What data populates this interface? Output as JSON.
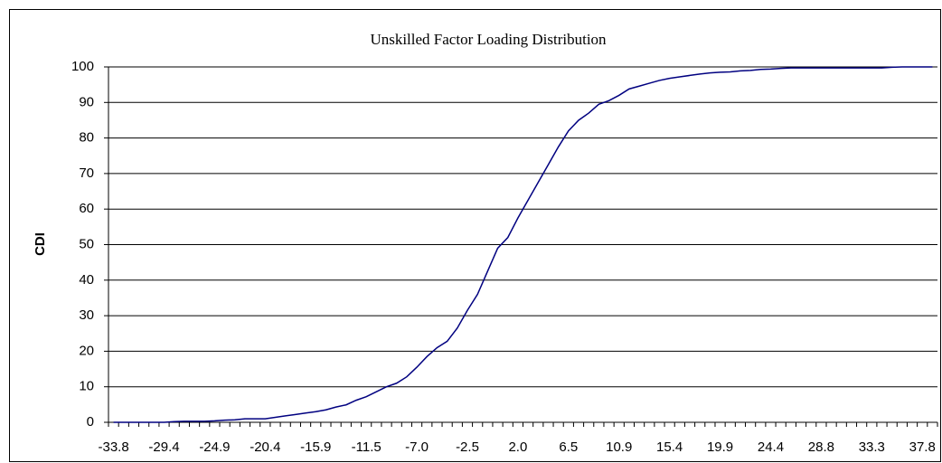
{
  "chart_data": {
    "type": "line",
    "title": "Unskilled Factor Loading Distribution",
    "y_label": "CDI",
    "categories": [
      "-33.8",
      null,
      null,
      null,
      null,
      "-29.4",
      null,
      null,
      null,
      null,
      "-24.9",
      null,
      null,
      null,
      null,
      "-20.4",
      null,
      null,
      null,
      null,
      "-15.9",
      null,
      null,
      null,
      null,
      "-11.5",
      null,
      null,
      null,
      null,
      "-7.0",
      null,
      null,
      null,
      null,
      "-2.5",
      null,
      null,
      null,
      null,
      "2.0",
      null,
      null,
      null,
      null,
      "6.5",
      null,
      null,
      null,
      null,
      "10.9",
      null,
      null,
      null,
      null,
      "15.4",
      null,
      null,
      null,
      null,
      "19.9",
      null,
      null,
      null,
      null,
      "24.4",
      null,
      null,
      null,
      null,
      "28.8",
      null,
      null,
      null,
      null,
      "33.3",
      null,
      null,
      null,
      null,
      "37.8",
      null
    ],
    "values": [
      0,
      0,
      0,
      0,
      0,
      0,
      0.2,
      0.3,
      0.3,
      0.3,
      0.4,
      0.6,
      0.7,
      1.0,
      1.0,
      1.0,
      1.4,
      1.8,
      2.2,
      2.6,
      3.0,
      3.5,
      4.3,
      4.9,
      6.2,
      7.2,
      8.6,
      10.0,
      11.0,
      12.8,
      15.5,
      18.5,
      21.0,
      22.8,
      26.5,
      31.5,
      36.0,
      42.5,
      49.0,
      52.0,
      57.5,
      62.5,
      67.5,
      72.5,
      77.5,
      82.0,
      85.0,
      87.0,
      89.5,
      90.5,
      92.0,
      93.8,
      94.6,
      95.4,
      96.2,
      96.8,
      97.2,
      97.6,
      98.0,
      98.3,
      98.5,
      98.6,
      98.9,
      99.0,
      99.3,
      99.4,
      99.6,
      99.7,
      99.7,
      99.7,
      99.7,
      99.7,
      99.7,
      99.7,
      99.7,
      99.7,
      99.7,
      99.9,
      100,
      100,
      100,
      100
    ],
    "color": "#000080",
    "ylim": [
      0,
      100
    ],
    "yticks": [
      0,
      10,
      20,
      30,
      40,
      50,
      60,
      70,
      80,
      90,
      100
    ],
    "grid": true
  }
}
